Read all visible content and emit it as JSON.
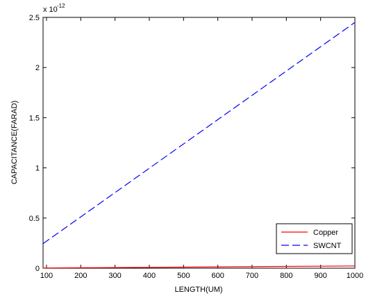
{
  "chart_data": {
    "type": "line",
    "title": "",
    "xlabel": "LENGTH(UM)",
    "ylabel": "CAPACITANCE(FARAD)",
    "xlim": [
      90,
      1000
    ],
    "ylim": [
      0,
      2.5
    ],
    "x_ticks": [
      100,
      200,
      300,
      400,
      500,
      600,
      700,
      800,
      900,
      1000
    ],
    "y_ticks": [
      0,
      0.5,
      1,
      1.5,
      2,
      2.5
    ],
    "y_exponent_label": "x 10",
    "y_exponent_power": "-12",
    "grid": false,
    "legend_position": "bottom-right",
    "series": [
      {
        "name": "Copper",
        "color": "#ff0000",
        "style": "solid",
        "x": [
          90,
          1000
        ],
        "y": [
          0.002,
          0.022
        ]
      },
      {
        "name": "SWCNT",
        "color": "#0000ff",
        "style": "dashed",
        "x": [
          90,
          1000
        ],
        "y": [
          0.245,
          2.45
        ]
      }
    ]
  }
}
